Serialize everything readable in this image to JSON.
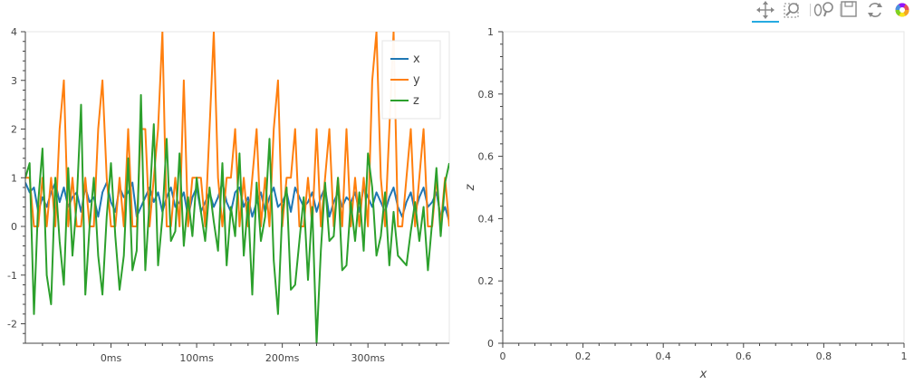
{
  "toolbar": {
    "tools": [
      "pan-icon",
      "box-zoom-icon",
      "wheel-zoom-icon",
      "save-icon",
      "reset-icon",
      "bokeh-logo-icon"
    ],
    "active_tool": "pan-icon",
    "accent_color": "#26aae1"
  },
  "colors": {
    "x": "#1f77b4",
    "y": "#ff7f0e",
    "z": "#2ca02c"
  },
  "chart_data": [
    {
      "type": "line",
      "x_unit": "ms",
      "xlim": [
        -100,
        395
      ],
      "ylim": [
        -2.4,
        4
      ],
      "x_ticks": [
        "0ms",
        "100ms",
        "200ms",
        "300ms"
      ],
      "y_ticks": [
        "-2",
        "-1",
        "0",
        "1",
        "2",
        "3",
        "4"
      ],
      "grid": false,
      "legend_position": "top-right",
      "x": [
        -100,
        -95,
        -90,
        -85,
        -80,
        -75,
        -70,
        -65,
        -60,
        -55,
        -50,
        -45,
        -40,
        -35,
        -30,
        -25,
        -20,
        -15,
        -10,
        -5,
        0,
        5,
        10,
        15,
        20,
        25,
        30,
        35,
        40,
        45,
        50,
        55,
        60,
        65,
        70,
        75,
        80,
        85,
        90,
        95,
        100,
        105,
        110,
        115,
        120,
        125,
        130,
        135,
        140,
        145,
        150,
        155,
        160,
        165,
        170,
        175,
        180,
        185,
        190,
        195,
        200,
        205,
        210,
        215,
        220,
        225,
        230,
        235,
        240,
        245,
        250,
        255,
        260,
        265,
        270,
        275,
        280,
        285,
        290,
        295,
        300,
        305,
        310,
        315,
        320,
        325,
        330,
        335,
        340,
        345,
        350,
        355,
        360,
        365,
        370,
        375,
        380,
        385,
        390,
        395
      ],
      "series": [
        {
          "name": "x",
          "color": "#1f77b4",
          "values": [
            0.9,
            0.7,
            0.8,
            0.3,
            0.6,
            0.4,
            0.7,
            0.9,
            0.5,
            0.8,
            0.4,
            0.6,
            0.7,
            0.3,
            0.8,
            0.5,
            0.6,
            0.2,
            0.7,
            0.9,
            0.5,
            0.3,
            0.8,
            0.6,
            0.7,
            0.9,
            0.2,
            0.4,
            0.6,
            0.8,
            0.5,
            0.7,
            0.3,
            0.6,
            0.8,
            0.4,
            0.5,
            0.7,
            0.2,
            0.6,
            0.8,
            0.3,
            0.5,
            0.7,
            0.4,
            0.6,
            0.9,
            0.5,
            0.3,
            0.7,
            0.8,
            0.4,
            0.6,
            0.2,
            0.5,
            0.7,
            0.3,
            0.6,
            0.8,
            0.4,
            0.5,
            0.7,
            0.3,
            0.8,
            0.6,
            0.4,
            0.5,
            0.7,
            0.3,
            0.6,
            0.8,
            0.2,
            0.5,
            0.7,
            0.4,
            0.6,
            0.5,
            0.7,
            0.3,
            0.8,
            0.6,
            0.4,
            0.7,
            0.5,
            0.3,
            0.6,
            0.8,
            0.4,
            0.2,
            0.5,
            0.7,
            0.3,
            0.6,
            0.8,
            0.4,
            0.5,
            0.7,
            0.2,
            0.4,
            0.1
          ]
        },
        {
          "name": "y",
          "color": "#ff7f0e",
          "values": [
            1,
            1,
            0,
            0,
            1,
            0,
            1,
            0,
            2,
            3,
            0,
            1,
            0,
            0,
            1,
            0,
            0,
            2,
            3,
            1,
            0,
            0,
            1,
            0,
            2,
            0,
            0,
            2,
            2,
            0,
            1,
            2,
            4,
            0,
            0,
            1,
            0,
            3,
            0,
            1,
            1,
            1,
            0,
            2,
            4,
            1,
            0,
            1,
            1,
            2,
            0,
            1,
            0,
            1,
            2,
            0,
            1,
            0,
            2,
            3,
            0,
            1,
            1,
            2,
            0,
            0,
            1,
            0,
            2,
            0,
            1,
            2,
            0,
            1,
            0,
            2,
            0,
            1,
            0,
            1,
            0,
            3,
            4,
            1,
            0,
            2,
            4,
            0,
            0,
            1,
            2,
            0,
            1,
            2,
            0,
            0,
            1,
            0,
            1,
            0
          ]
        },
        {
          "name": "z",
          "color": "#2ca02c",
          "values": [
            1,
            1.3,
            -1.8,
            0.5,
            1.6,
            -1,
            -1.6,
            1,
            -0.3,
            -1.2,
            1.2,
            -0.6,
            0.5,
            2.5,
            -1.4,
            0,
            1,
            -0.6,
            -1.4,
            0.2,
            1.3,
            -0.2,
            -1.3,
            -0.6,
            1.4,
            -0.9,
            -0.5,
            2.7,
            -0.9,
            0.5,
            2.1,
            -0.8,
            0.2,
            1.8,
            -0.3,
            -0.1,
            1.5,
            -0.4,
            0.6,
            -0.2,
            1,
            0.3,
            -0.3,
            0.8,
            0.1,
            -0.5,
            1.3,
            -0.8,
            0.4,
            -0.2,
            1.5,
            -0.6,
            0.5,
            -1.4,
            0.9,
            -0.3,
            0.2,
            1.8,
            -0.7,
            -1.8,
            0.3,
            0.8,
            -1.3,
            -1.2,
            -0.3,
            0.6,
            -1.1,
            0.4,
            -2.4,
            -0.5,
            0.9,
            -0.3,
            -0.2,
            1,
            -0.9,
            -0.8,
            0.5,
            -0.3,
            0.7,
            -0.5,
            1.5,
            0.8,
            -0.6,
            -0.2,
            0.7,
            -0.8,
            0.3,
            -0.6,
            -0.7,
            -0.8,
            -0.1,
            0.5,
            -0.3,
            0.4,
            -0.9,
            0.1,
            1.2,
            -0.2,
            0.9,
            1.3
          ]
        }
      ]
    },
    {
      "type": "scatter",
      "xlabel": "x",
      "ylabel": "z",
      "xlim": [
        0,
        1
      ],
      "ylim": [
        0,
        1
      ],
      "x_ticks": [
        "0",
        "0.2",
        "0.4",
        "0.6",
        "0.8",
        "1"
      ],
      "y_ticks": [
        "0",
        "0.2",
        "0.4",
        "0.6",
        "0.8",
        "1"
      ],
      "grid": false,
      "series": []
    }
  ]
}
